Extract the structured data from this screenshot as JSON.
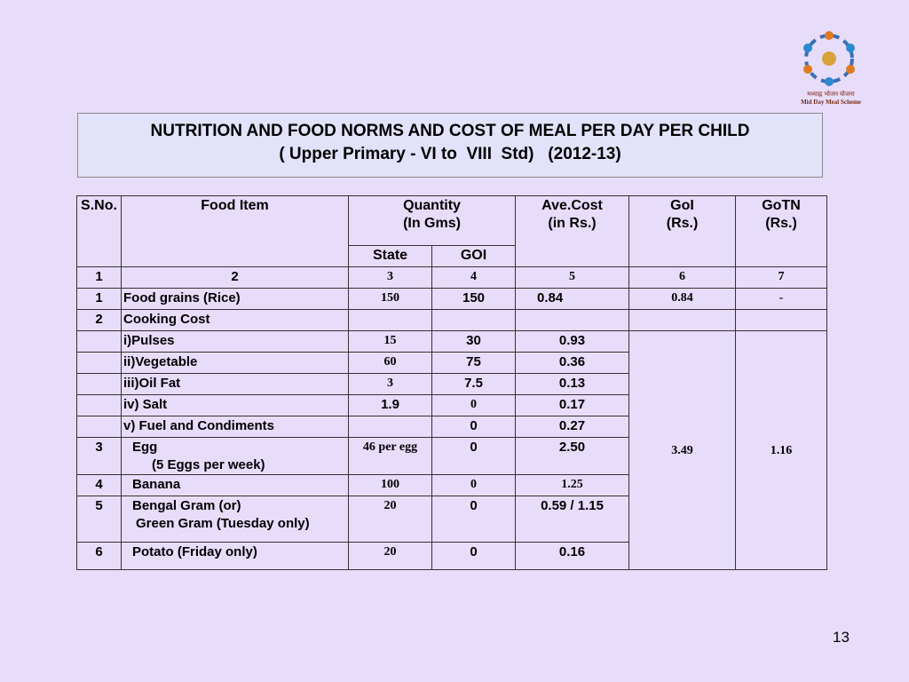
{
  "logo": {
    "hindi": "मध्याह्न भोजन योजना",
    "caption": "Mid Day Meal Scheme"
  },
  "title": {
    "line1": "NUTRITION AND FOOD NORMS AND COST OF MEAL PER DAY PER CHILD",
    "line2": "( Upper Primary - VI to  VIII  Std)   (2012-13)"
  },
  "table": {
    "header": {
      "sno": "S.No.",
      "item": "Food Item",
      "quantity": "Quantity",
      "quantity_unit": "(In Gms)",
      "state": "State",
      "goi": "GOI",
      "cost": "Ave.Cost",
      "cost_unit": "(in Rs.)",
      "goi_share": "GoI",
      "goi_share_unit": "(Rs.)",
      "gotn": "GoTN",
      "gotn_unit": "(Rs.)"
    },
    "column_numbers": [
      "1",
      "2",
      "3",
      "4",
      "5",
      "6",
      "7"
    ],
    "rows": [
      [
        "1",
        "Food grains (Rice)",
        "150",
        "150",
        "0.84",
        "0.84",
        "-"
      ],
      [
        "2",
        "Cooking Cost",
        null,
        null,
        null,
        null,
        null
      ],
      [
        null,
        "i)Pulses",
        "15",
        "30",
        "0.93"
      ],
      [
        null,
        "ii)Vegetable",
        "60",
        "75",
        "0.36"
      ],
      [
        null,
        "iii)Oil Fat",
        "3",
        "7.5",
        "0.13"
      ],
      [
        null,
        "iv) Salt",
        "1.9",
        "0",
        "0.17"
      ],
      [
        null,
        "v) Fuel and Condiments",
        null,
        "0",
        "0.27"
      ],
      [
        "3",
        [
          "Egg",
          "(5 Eggs per week)"
        ],
        "46 per egg",
        "0",
        "2.50"
      ],
      [
        "4",
        "Banana",
        "100",
        "0",
        "1.25"
      ],
      [
        "5",
        [
          "Bengal Gram (or)",
          "Green Gram  (Tuesday only)"
        ],
        "20",
        "0",
        "0.59 / 1.15"
      ],
      [
        "6",
        "Potato (Friday only)",
        "20",
        "0",
        "0.16"
      ]
    ],
    "merged_goi_share": "3.49",
    "merged_gotn": "1.16"
  },
  "page_number": "13"
}
